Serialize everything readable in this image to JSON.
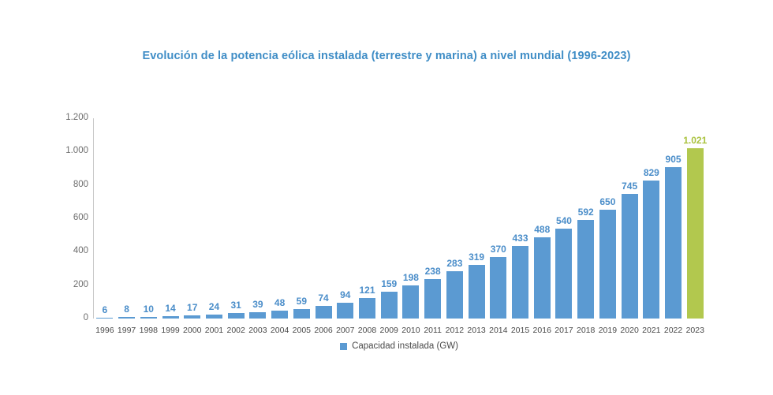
{
  "chart": {
    "title": "Evolución de la potencia eólica instalada (terrestre y marina) a nivel mundial (1996-2023)",
    "legend_label": "Capacidad instalada (GW)"
  },
  "chart_data": {
    "type": "bar",
    "title": "Evolución de la potencia eólica instalada (terrestre y marina) a nivel mundial (1996-2023)",
    "xlabel": "",
    "ylabel": "",
    "categories": [
      "1996",
      "1997",
      "1998",
      "1999",
      "2000",
      "2001",
      "2002",
      "2003",
      "2004",
      "2005",
      "2006",
      "2007",
      "2008",
      "2009",
      "2010",
      "2011",
      "2012",
      "2013",
      "2014",
      "2015",
      "2016",
      "2017",
      "2018",
      "2019",
      "2020",
      "2021",
      "2022",
      "2023"
    ],
    "values": [
      6,
      8,
      10,
      14,
      17,
      24,
      31,
      39,
      48,
      59,
      74,
      94,
      121,
      159,
      198,
      238,
      283,
      319,
      370,
      433,
      488,
      540,
      592,
      650,
      745,
      829,
      905,
      1021
    ],
    "value_labels": [
      "6",
      "8",
      "10",
      "14",
      "17",
      "24",
      "31",
      "39",
      "48",
      "59",
      "74",
      "94",
      "121",
      "159",
      "198",
      "238",
      "283",
      "319",
      "370",
      "433",
      "488",
      "540",
      "592",
      "650",
      "745",
      "829",
      "905",
      "1.021"
    ],
    "highlight_index": 27,
    "ylim": [
      0,
      1200
    ],
    "yticks": [
      0,
      200,
      400,
      600,
      800,
      1000,
      1200
    ],
    "ytick_labels": [
      "0",
      "200",
      "400",
      "600",
      "800",
      "1.000",
      "1.200"
    ],
    "grid": false,
    "legend": "Capacidad instalada (GW)",
    "legend_position": "bottom",
    "colors": {
      "bar": "#5b9ad2",
      "highlight_bar": "#b2c84e",
      "value_label": "#4a8dc9",
      "highlight_value_label": "#a9c23d",
      "title": "#3f8dc6",
      "axis_line": "#c9c9c9",
      "ytick_label": "#6e6e6e",
      "xtick_label": "#4a4a4a",
      "legend_text": "#4a4a4a"
    }
  }
}
